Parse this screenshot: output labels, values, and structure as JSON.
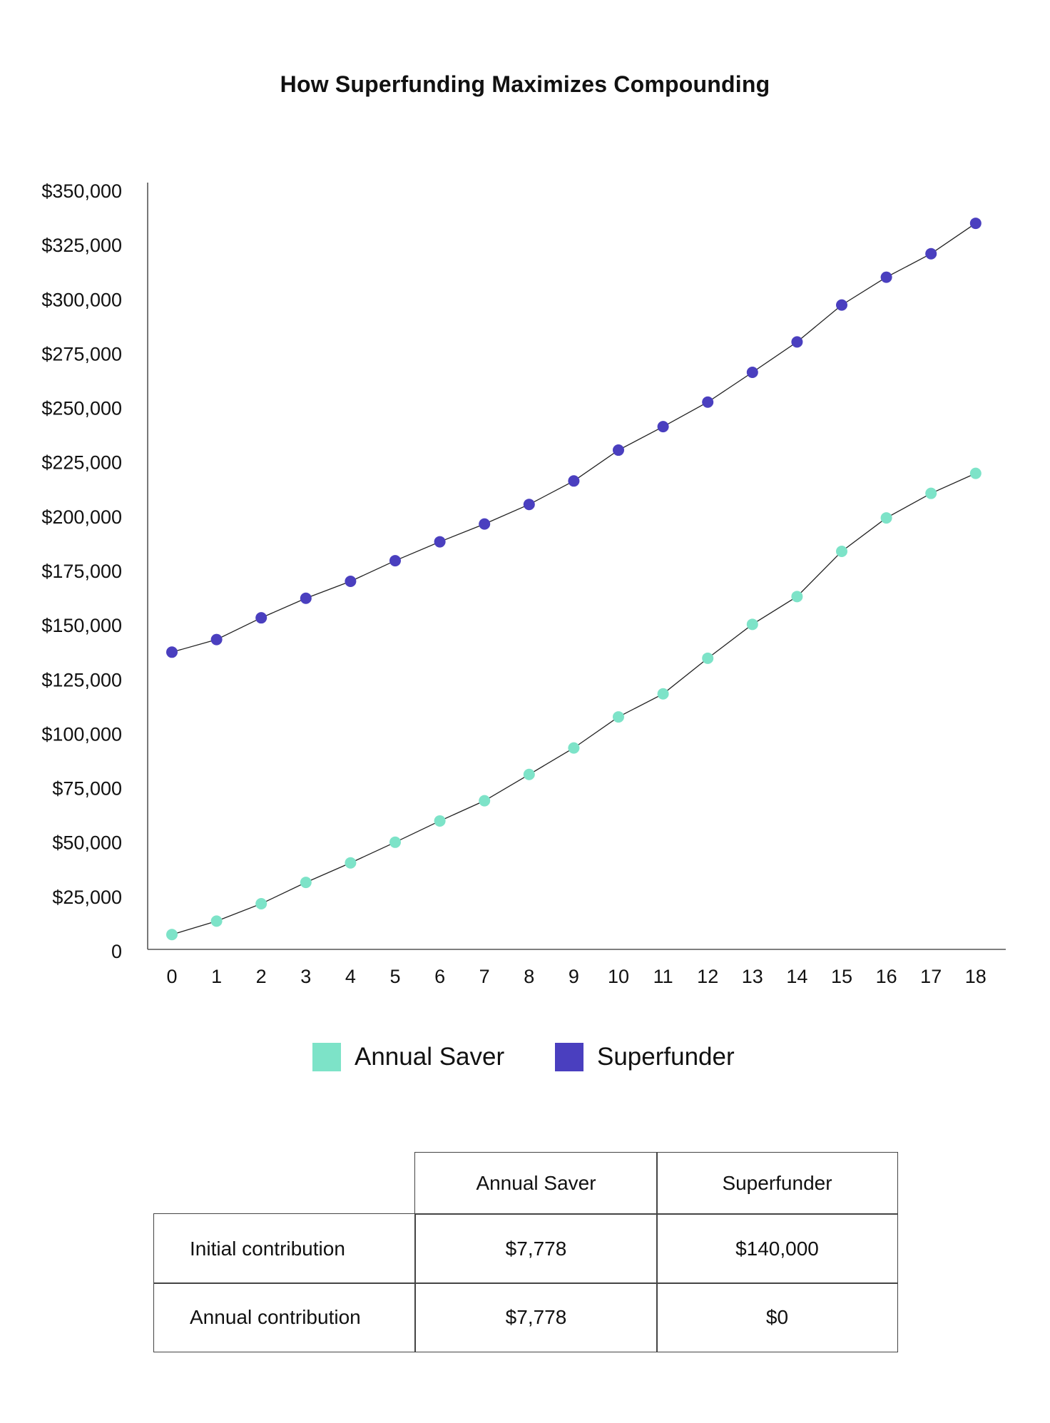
{
  "chart_data": {
    "type": "line",
    "title": "How Superfunding Maximizes Compounding",
    "xlabel": "",
    "ylabel": "",
    "x": [
      0,
      1,
      2,
      3,
      4,
      5,
      6,
      7,
      8,
      9,
      10,
      11,
      12,
      13,
      14,
      15,
      16,
      17,
      18
    ],
    "ylim": [
      0,
      350000
    ],
    "y_ticks": [
      {
        "value": 0,
        "label": "0"
      },
      {
        "value": 25000,
        "label": "$25,000"
      },
      {
        "value": 50000,
        "label": "$50,000"
      },
      {
        "value": 75000,
        "label": "$75,000"
      },
      {
        "value": 100000,
        "label": "$100,000"
      },
      {
        "value": 125000,
        "label": "$125,000"
      },
      {
        "value": 150000,
        "label": "$150,000"
      },
      {
        "value": 175000,
        "label": "$175,000"
      },
      {
        "value": 200000,
        "label": "$200,000"
      },
      {
        "value": 225000,
        "label": "$225,000"
      },
      {
        "value": 250000,
        "label": "$250,000"
      },
      {
        "value": 275000,
        "label": "$275,000"
      },
      {
        "value": 300000,
        "label": "$300,000"
      },
      {
        "value": 325000,
        "label": "$325,000"
      },
      {
        "value": 350000,
        "label": "$350,000"
      }
    ],
    "x_tick_labels": [
      "0",
      "1",
      "2",
      "3",
      "4",
      "5",
      "6",
      "7",
      "8",
      "9",
      "10",
      "11",
      "12",
      "13",
      "14",
      "15",
      "16",
      "17",
      "18"
    ],
    "grid": false,
    "legend_position": "bottom-center",
    "series": [
      {
        "name": "Annual Saver",
        "color": "#7de3c8",
        "values": [
          7800,
          14000,
          22000,
          31800,
          40800,
          50300,
          60100,
          69400,
          81500,
          93700,
          108000,
          118600,
          135000,
          150600,
          163400,
          184200,
          199600,
          210900,
          220100
        ]
      },
      {
        "name": "Superfunder",
        "color": "#4a3fbf",
        "values": [
          137800,
          143600,
          153600,
          162600,
          170400,
          179900,
          188600,
          196800,
          205800,
          216600,
          230800,
          241600,
          252900,
          266600,
          280600,
          297600,
          310400,
          321200,
          335200
        ]
      }
    ]
  },
  "table": {
    "headers": [
      "",
      "Annual Saver",
      "Superfunder"
    ],
    "rows": [
      {
        "label": "Initial contribution",
        "annual_saver": "$7,778",
        "superfunder": "$140,000"
      },
      {
        "label": "Annual contribution",
        "annual_saver": "$7,778",
        "superfunder": "$0"
      }
    ]
  }
}
